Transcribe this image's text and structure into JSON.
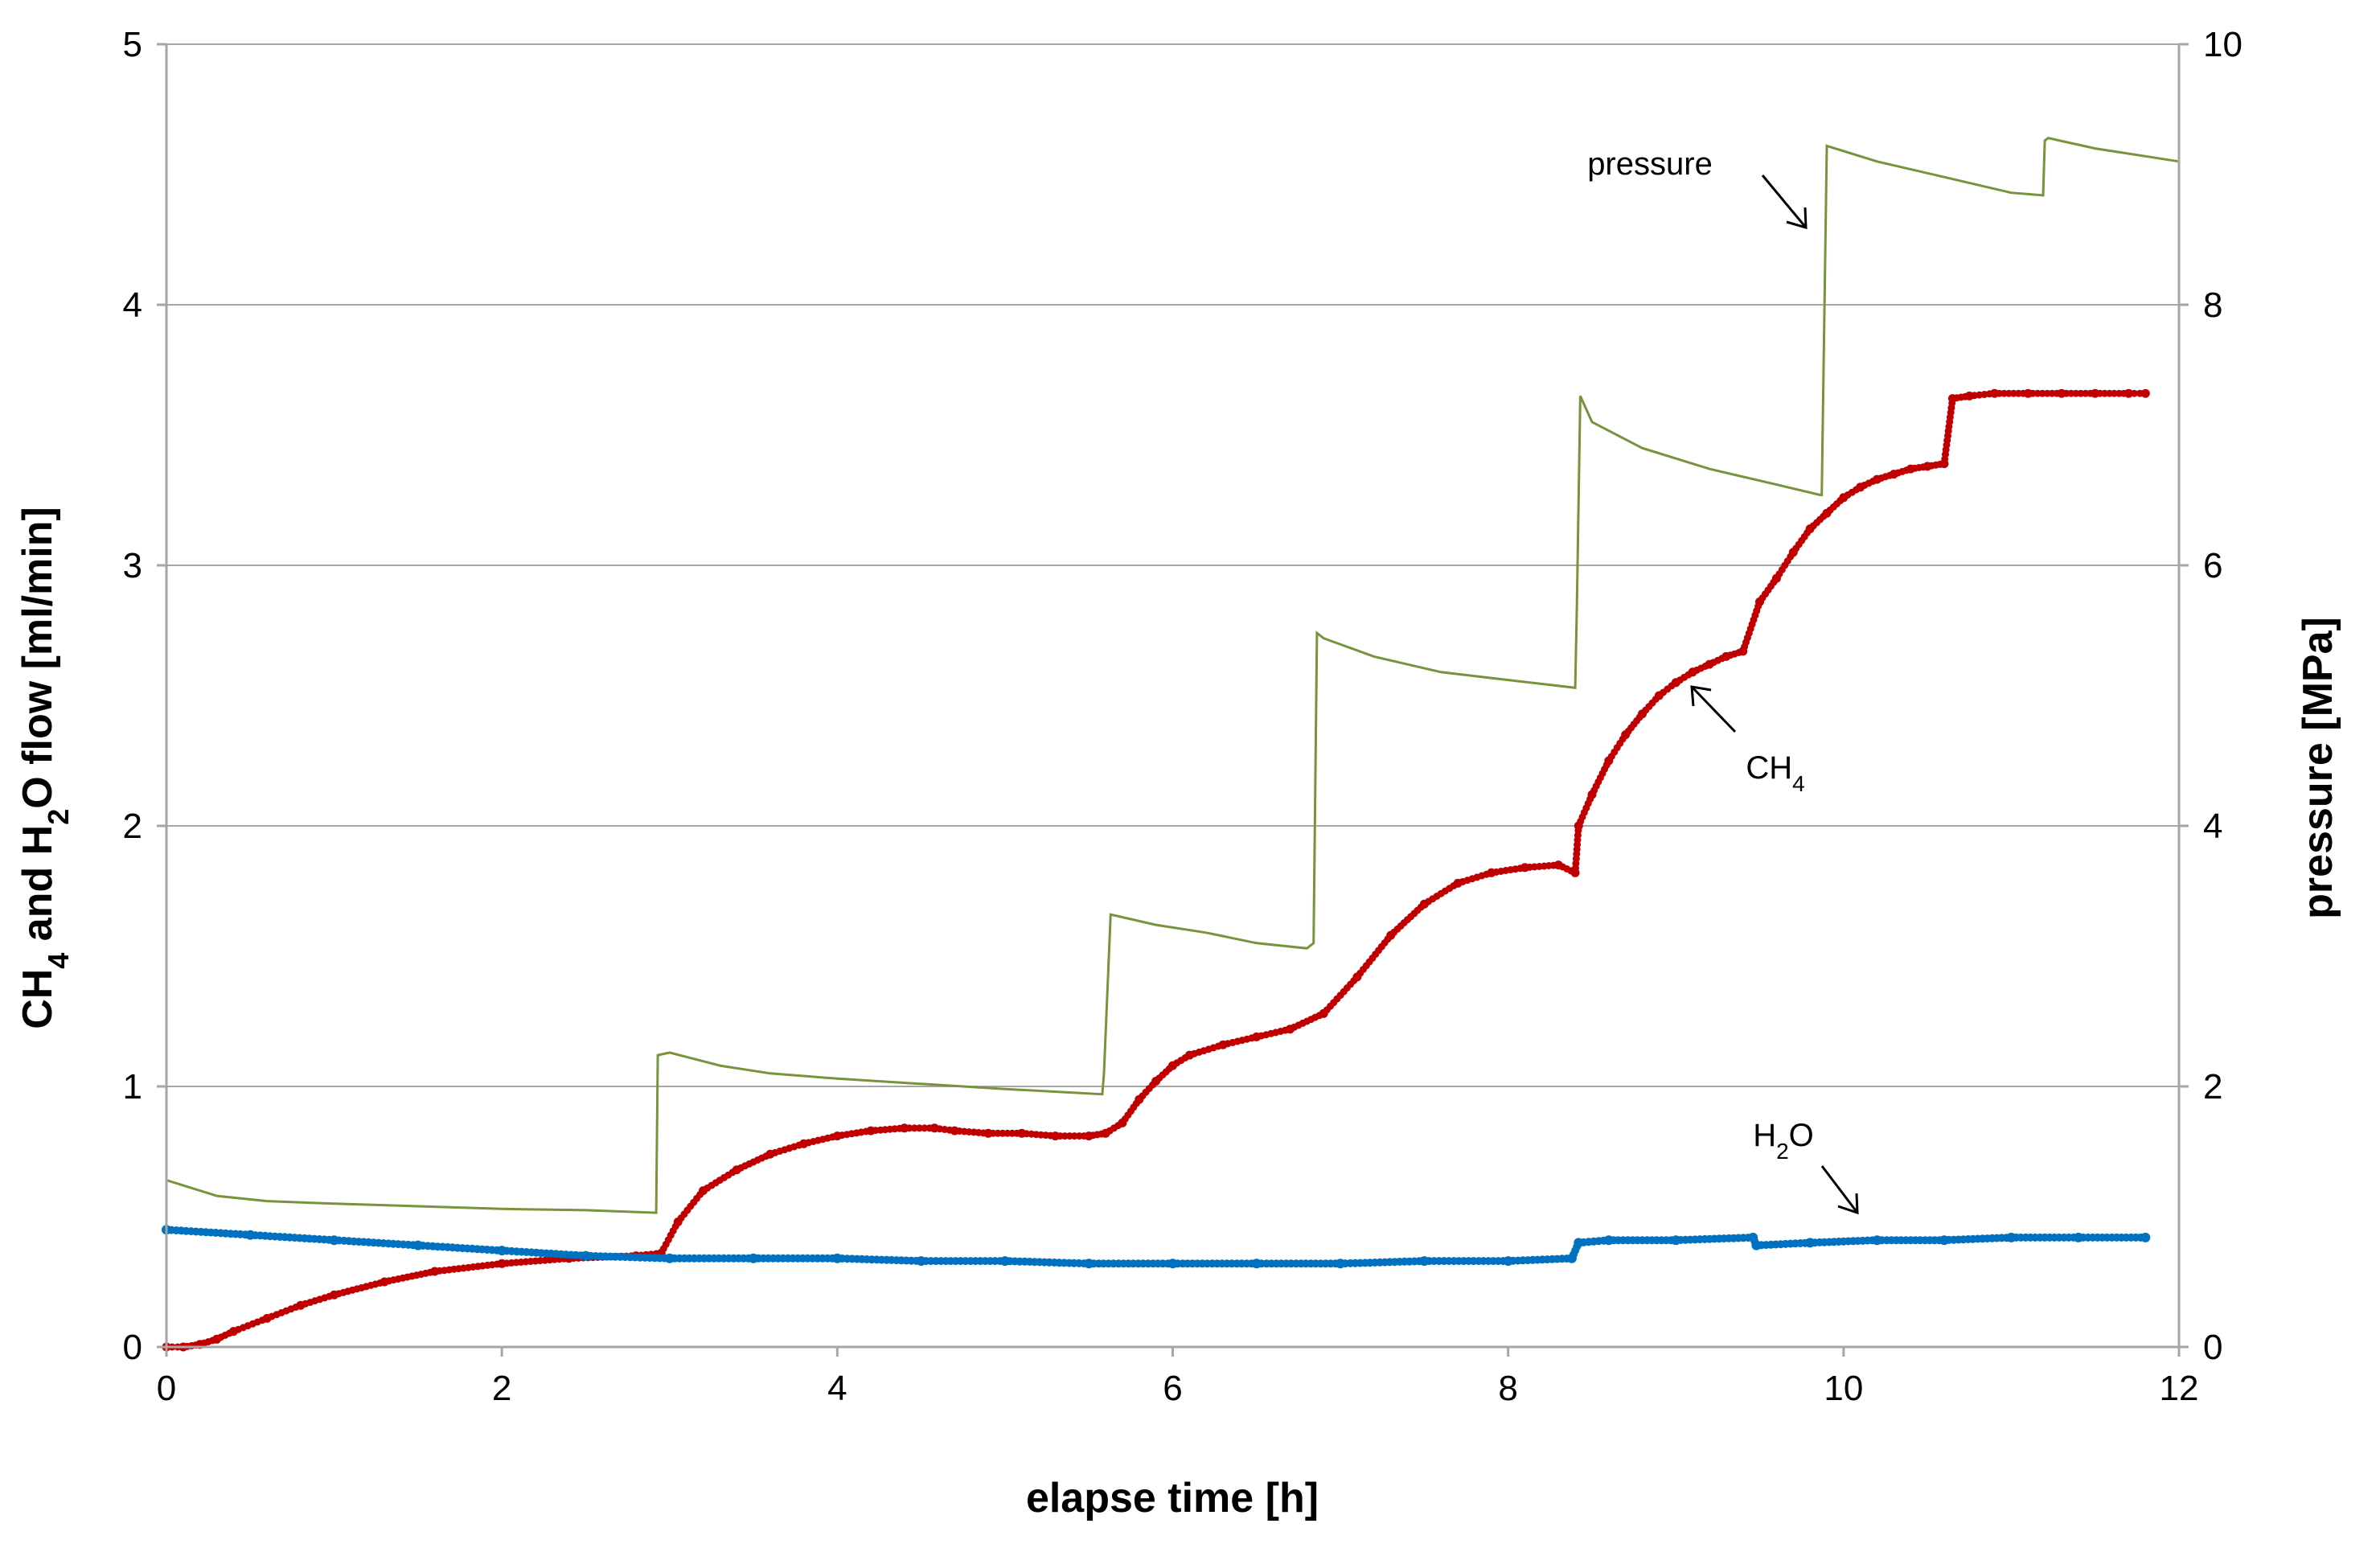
{
  "chart_data": {
    "type": "scatter",
    "xlabel": "elapse time [h]",
    "ylabel_left": {
      "base": "CH",
      "sub1": "4",
      "mid": " and H",
      "sub2": "2",
      "tail": "O flow [ml/min]"
    },
    "ylabel_right": "pressure [MPa]",
    "xlim": [
      0,
      12
    ],
    "ylim_left": [
      0,
      5
    ],
    "ylim_right": [
      0,
      10
    ],
    "x_ticks": [
      0,
      2,
      4,
      6,
      8,
      10,
      12
    ],
    "x_tick_labels": [
      "0",
      "2",
      "4",
      "6",
      "8",
      "10",
      "12"
    ],
    "y_left_ticks": [
      0,
      1,
      2,
      3,
      4,
      5
    ],
    "y_left_tick_labels": [
      "0",
      "1",
      "2",
      "3",
      "4",
      "5"
    ],
    "y_right_ticks": [
      0,
      2,
      4,
      6,
      8,
      10
    ],
    "y_right_tick_labels": [
      "0",
      "2",
      "4",
      "6",
      "8",
      "10"
    ],
    "grid": "horizontal",
    "colors": {
      "pressure": "#77933c",
      "ch4": "#c00000",
      "h2o": "#0070c0",
      "grid": "#a6a6a6",
      "axis": "#a6a6a6"
    },
    "series": [
      {
        "name": "pressure",
        "axis": "right",
        "style": "line",
        "x": [
          0,
          0.3,
          0.6,
          1.0,
          1.5,
          2.0,
          2.5,
          2.92,
          2.93,
          3.0,
          3.3,
          3.6,
          4.0,
          4.5,
          5.0,
          5.58,
          5.59,
          5.63,
          5.9,
          6.2,
          6.5,
          6.8,
          6.84,
          6.86,
          6.9,
          7.2,
          7.6,
          8.0,
          8.4,
          8.41,
          8.43,
          8.5,
          8.8,
          9.2,
          9.6,
          9.86,
          9.87,
          9.9,
          10.2,
          10.6,
          11.0,
          11.19,
          11.2,
          11.22,
          11.5,
          11.8,
          12.0
        ],
        "y": [
          1.28,
          1.16,
          1.12,
          1.1,
          1.08,
          1.06,
          1.05,
          1.03,
          2.24,
          2.26,
          2.16,
          2.1,
          2.06,
          2.02,
          1.98,
          1.94,
          2.1,
          3.32,
          3.24,
          3.18,
          3.1,
          3.06,
          3.1,
          5.48,
          5.44,
          5.3,
          5.18,
          5.12,
          5.06,
          5.7,
          7.3,
          7.1,
          6.9,
          6.74,
          6.62,
          6.54,
          6.54,
          9.22,
          9.1,
          8.98,
          8.86,
          8.84,
          9.26,
          9.28,
          9.2,
          9.14,
          9.1
        ]
      },
      {
        "name": "CH4",
        "axis": "left",
        "style": "markers",
        "x": [
          0,
          0.1,
          0.2,
          0.3,
          0.4,
          0.6,
          0.8,
          1.0,
          1.3,
          1.6,
          2.0,
          2.4,
          2.8,
          2.95,
          3.05,
          3.2,
          3.4,
          3.6,
          3.8,
          4.0,
          4.2,
          4.4,
          4.58,
          4.7,
          4.9,
          5.1,
          5.3,
          5.5,
          5.6,
          5.7,
          5.8,
          5.9,
          6.0,
          6.1,
          6.3,
          6.5,
          6.7,
          6.9,
          7.1,
          7.3,
          7.5,
          7.7,
          7.9,
          8.1,
          8.3,
          8.4,
          8.42,
          8.5,
          8.6,
          8.7,
          8.8,
          8.9,
          9.0,
          9.1,
          9.2,
          9.3,
          9.4,
          9.5,
          9.6,
          9.7,
          9.8,
          9.9,
          10.0,
          10.1,
          10.2,
          10.3,
          10.4,
          10.5,
          10.6,
          10.65,
          10.75,
          10.9,
          11.1,
          11.3,
          11.5,
          11.7,
          11.8
        ],
        "y": [
          0.0,
          0.0,
          0.01,
          0.03,
          0.06,
          0.11,
          0.16,
          0.2,
          0.25,
          0.29,
          0.32,
          0.34,
          0.35,
          0.36,
          0.48,
          0.6,
          0.68,
          0.74,
          0.78,
          0.81,
          0.83,
          0.84,
          0.84,
          0.83,
          0.82,
          0.82,
          0.81,
          0.81,
          0.82,
          0.86,
          0.95,
          1.02,
          1.08,
          1.12,
          1.16,
          1.19,
          1.22,
          1.28,
          1.42,
          1.58,
          1.7,
          1.78,
          1.82,
          1.84,
          1.85,
          1.82,
          2.0,
          2.12,
          2.25,
          2.35,
          2.43,
          2.5,
          2.55,
          2.59,
          2.62,
          2.65,
          2.67,
          2.86,
          2.95,
          3.05,
          3.14,
          3.2,
          3.26,
          3.3,
          3.33,
          3.35,
          3.37,
          3.38,
          3.39,
          3.64,
          3.65,
          3.66,
          3.66,
          3.66,
          3.66,
          3.66,
          3.66
        ]
      },
      {
        "name": "H2O",
        "axis": "left",
        "style": "markers",
        "x": [
          0,
          0.5,
          1.0,
          1.5,
          2.0,
          2.5,
          3.0,
          3.5,
          4.0,
          4.5,
          5.0,
          5.5,
          6.0,
          6.5,
          7.0,
          7.5,
          8.0,
          8.38,
          8.42,
          8.6,
          9.0,
          9.46,
          9.48,
          9.8,
          10.2,
          10.6,
          11.0,
          11.4,
          11.8
        ],
        "y": [
          0.45,
          0.43,
          0.41,
          0.39,
          0.37,
          0.35,
          0.34,
          0.34,
          0.34,
          0.33,
          0.33,
          0.32,
          0.32,
          0.32,
          0.32,
          0.33,
          0.33,
          0.34,
          0.4,
          0.41,
          0.41,
          0.42,
          0.39,
          0.4,
          0.41,
          0.41,
          0.42,
          0.42,
          0.42
        ]
      }
    ],
    "annotations": [
      {
        "text": "pressure",
        "points_to": {
          "x": 9.8,
          "y_right": 8.7
        }
      },
      {
        "base": "CH",
        "sub": "4",
        "points_to": {
          "x": 9.1,
          "y_left": 2.55
        }
      },
      {
        "base": "H",
        "sub": "2",
        "tail": "O",
        "points_to": {
          "x": 10.1,
          "y_left": 0.5
        }
      }
    ]
  }
}
